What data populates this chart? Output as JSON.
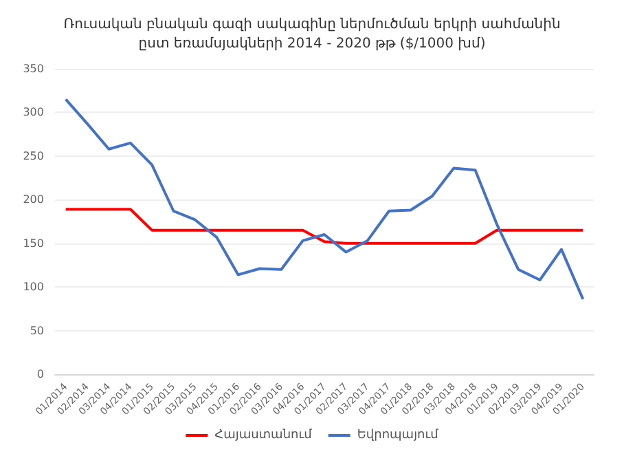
{
  "chart_data": {
    "type": "line",
    "title": "Ռուսական բնական գազի սակագինը ներմուծման երկրի սահմանին\nըստ եռամսյակների 2014 - 2020 թթ ($/1000 խմ)",
    "categories": [
      "01/2014",
      "02/2014",
      "03/2014",
      "04/2014",
      "01/2015",
      "02/2015",
      "03/2015",
      "04/2015",
      "01/2016",
      "02/2016",
      "03/2016",
      "04/2016",
      "01/2017",
      "02/2017",
      "03/2017",
      "04/2017",
      "01/2018",
      "02/2018",
      "03/2018",
      "04/2018",
      "01/2019",
      "02/2019",
      "03/2019",
      "04/2019",
      "01/2020"
    ],
    "series": [
      {
        "name": "Հայաստանում",
        "color": "#ff0000",
        "values": [
          189,
          189,
          189,
          189,
          165,
          165,
          165,
          165,
          165,
          165,
          165,
          165,
          152,
          150,
          150,
          150,
          150,
          150,
          150,
          150,
          165,
          165,
          165,
          165,
          165
        ]
      },
      {
        "name": "Եվրոպայում",
        "color": "#4472c4",
        "values": [
          315,
          287,
          258,
          265,
          240,
          187,
          177,
          157,
          114,
          121,
          120,
          153,
          160,
          140,
          153,
          187,
          188,
          204,
          236,
          234,
          172,
          120,
          108,
          143,
          86
        ]
      }
    ],
    "ylim": [
      0,
      350
    ],
    "yticks": [
      0,
      50,
      100,
      150,
      200,
      250,
      300,
      350
    ],
    "grid": "y",
    "legend": "bottom",
    "marker": "none",
    "line_style": "solid"
  }
}
